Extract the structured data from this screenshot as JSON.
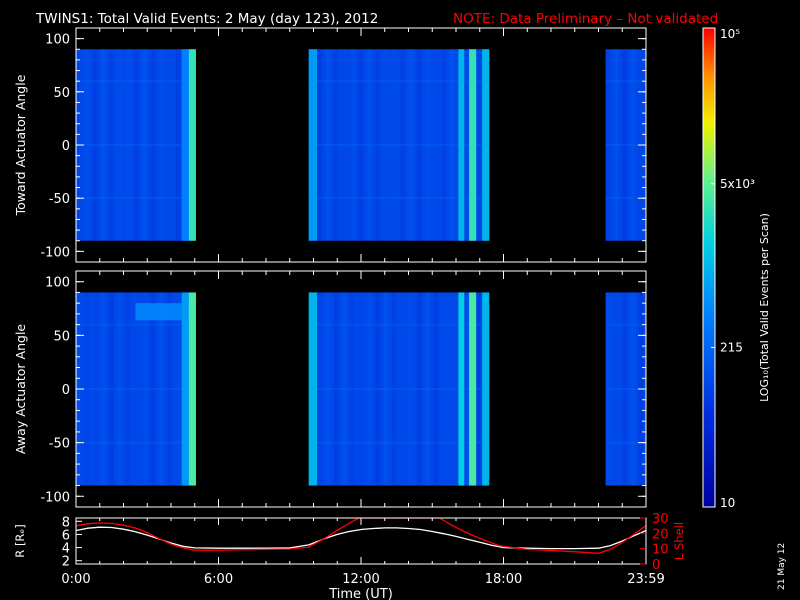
{
  "title": {
    "main": "TWINS1: Total Valid Events:  2 May (day 123), 2012",
    "note": "NOTE: Data Preliminary – Not validated"
  },
  "side_date": "21 May 12",
  "colors": {
    "background": "#000000",
    "axes": "#ffffff",
    "note": "#ff0000",
    "rshell_line": "#ffffff",
    "lshell_line": "#ff0000"
  },
  "chart_data": [
    {
      "type": "heatmap",
      "panel": "top",
      "ylabel": "Toward Actuator Angle",
      "ylim": [
        -110,
        110
      ],
      "yticks": [
        100,
        50,
        0,
        -50,
        -100
      ],
      "ytick_labels": [
        "100",
        "50",
        "0",
        "-50",
        "-100"
      ],
      "xlim": [
        0,
        24
      ],
      "data_yrange": [
        -90,
        90
      ],
      "segments": [
        {
          "t0": 0.0,
          "t1": 5.05
        },
        {
          "t0": 9.8,
          "t1": 17.4
        },
        {
          "t0": 22.3,
          "t1": 24.0
        }
      ],
      "bright_columns": [
        {
          "t0": 4.45,
          "t1": 4.75,
          "level": 0.4
        },
        {
          "t0": 4.75,
          "t1": 5.05,
          "level": 0.62
        },
        {
          "t0": 9.8,
          "t1": 10.15,
          "level": 0.45
        },
        {
          "t0": 16.1,
          "t1": 16.35,
          "level": 0.5
        },
        {
          "t0": 16.55,
          "t1": 16.85,
          "level": 0.62
        },
        {
          "t0": 17.1,
          "t1": 17.4,
          "level": 0.5
        }
      ],
      "bright_band": null
    },
    {
      "type": "heatmap",
      "panel": "middle",
      "ylabel": "Away Actuator Angle",
      "ylim": [
        -110,
        110
      ],
      "yticks": [
        100,
        50,
        0,
        -50,
        -100
      ],
      "ytick_labels": [
        "100",
        "50",
        "0",
        "-50",
        "-100"
      ],
      "xlim": [
        0,
        24
      ],
      "data_yrange": [
        -90,
        90
      ],
      "segments": [
        {
          "t0": 0.0,
          "t1": 5.05
        },
        {
          "t0": 9.8,
          "t1": 17.4
        },
        {
          "t0": 22.3,
          "t1": 24.0
        }
      ],
      "bright_columns": [
        {
          "t0": 4.45,
          "t1": 4.75,
          "level": 0.45
        },
        {
          "t0": 4.75,
          "t1": 5.05,
          "level": 0.65
        },
        {
          "t0": 9.8,
          "t1": 10.15,
          "level": 0.5
        },
        {
          "t0": 16.1,
          "t1": 16.35,
          "level": 0.55
        },
        {
          "t0": 16.55,
          "t1": 16.85,
          "level": 0.65
        },
        {
          "t0": 17.1,
          "t1": 17.4,
          "level": 0.5
        }
      ],
      "bright_band": {
        "t0": 2.5,
        "t1": 5.05,
        "y0": 64,
        "y1": 80,
        "level": 0.42
      }
    },
    {
      "type": "line",
      "panel": "bottom",
      "ylabel_left": "R [Rₑ]",
      "ylabel_right": "L Shell",
      "xlabel": "Time (UT)",
      "xlim": [
        0,
        24
      ],
      "xticks": [
        0,
        6,
        12,
        18,
        24
      ],
      "xtick_labels": [
        "0:00",
        "6:00",
        "12:00",
        "18:00",
        "23:59"
      ],
      "left_ylim": [
        1.5,
        8.5
      ],
      "left_yticks": [
        2,
        4,
        6,
        8
      ],
      "left_ytick_labels": [
        "2",
        "4",
        "6",
        "8"
      ],
      "right_ylim": [
        0,
        30
      ],
      "right_yticks": [
        0,
        10,
        20,
        30
      ],
      "right_ytick_labels": [
        "0",
        "10",
        "20",
        "30"
      ],
      "series": [
        {
          "axis": "left",
          "x": [
            0,
            0.5,
            1,
            1.5,
            2,
            2.5,
            3,
            3.5,
            4,
            4.5,
            5,
            6,
            7,
            8,
            9,
            9.8,
            10.5,
            11,
            11.5,
            12,
            12.5,
            13,
            13.5,
            14,
            14.5,
            15,
            15.5,
            16,
            16.5,
            17,
            17.5,
            18,
            19,
            20,
            21,
            22,
            22.5,
            23,
            23.5,
            24
          ],
          "y": [
            6.6,
            6.95,
            7.1,
            7.05,
            6.8,
            6.4,
            5.9,
            5.3,
            4.7,
            4.2,
            3.95,
            3.9,
            3.9,
            3.9,
            3.95,
            4.4,
            5.4,
            6.0,
            6.45,
            6.75,
            6.9,
            7.0,
            7.0,
            6.9,
            6.75,
            6.45,
            6.1,
            5.7,
            5.25,
            4.8,
            4.35,
            4.0,
            3.9,
            3.85,
            3.85,
            3.9,
            4.3,
            5.0,
            5.8,
            6.6
          ]
        },
        {
          "axis": "right",
          "x": [
            0,
            0.5,
            1,
            1.5,
            2,
            2.5,
            3,
            3.5,
            4,
            4.5,
            5,
            6,
            7,
            8,
            9,
            9.8,
            10.5,
            11,
            11.5,
            11.9,
            15.3,
            15.8,
            16.3,
            16.8,
            17.3,
            17.8,
            18.5,
            19,
            20,
            21,
            22,
            22.5,
            23,
            23.5,
            24
          ],
          "y": [
            25.0,
            26.2,
            26.8,
            26.5,
            25.3,
            23.5,
            20.5,
            16.5,
            13.0,
            10.5,
            9.0,
            9.0,
            9.3,
            9.5,
            9.8,
            11.0,
            17.0,
            22.0,
            26.5,
            30.0,
            30.0,
            25.5,
            21.5,
            18.0,
            15.0,
            12.0,
            10.5,
            9.5,
            8.8,
            8.0,
            7.0,
            9.5,
            14.0,
            19.5,
            25.0
          ]
        }
      ]
    },
    {
      "type": "colorbar",
      "label": "LOG₁₀(Total Valid Events per Scan)",
      "scale": "log",
      "range": [
        10,
        100000
      ],
      "ticks": [
        {
          "value": 10,
          "label": "10"
        },
        {
          "value": 215,
          "label": "215"
        },
        {
          "value": 5000,
          "label": "5x10³"
        },
        {
          "value": 100000,
          "label": "10⁵"
        }
      ]
    }
  ]
}
